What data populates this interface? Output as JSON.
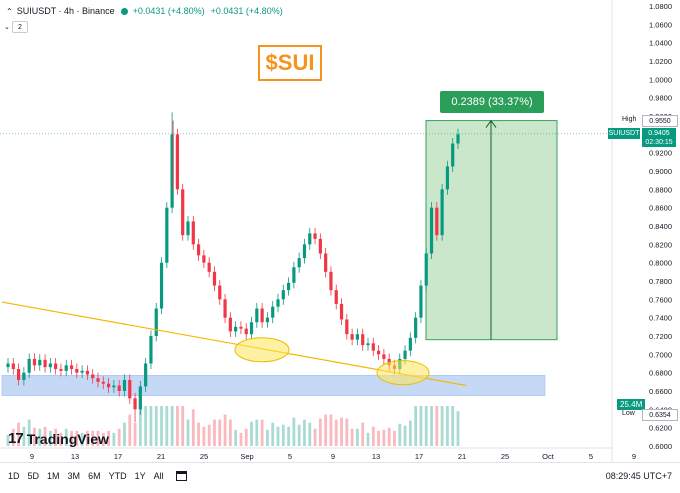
{
  "header": {
    "symbol": "SUIUSDT · 4h · Binance",
    "change_1": "+0.0431 (+4.80%)",
    "change_2": "+0.0431 (+4.80%)",
    "indicator_count": "2"
  },
  "overlay": {
    "title": "$SUI",
    "measure_label": "0.2389 (33.37%)"
  },
  "brand": {
    "logo_text": "17",
    "name": "TradingView"
  },
  "price_axis": {
    "ticks": [
      "1.0800",
      "1.0600",
      "1.0400",
      "1.0200",
      "1.0000",
      "0.9800",
      "0.9600",
      "0.9400",
      "0.9200",
      "0.9000",
      "0.8800",
      "0.8600",
      "0.8400",
      "0.8200",
      "0.8000",
      "0.7800",
      "0.7600",
      "0.7400",
      "0.7200",
      "0.7000",
      "0.6800",
      "0.6600",
      "0.6400",
      "0.6200",
      "0.6000"
    ],
    "high_label": "High",
    "high_value": "0.9550",
    "low_label": "Low",
    "low_value": "0.6354",
    "symbol_tag": "SUIUSDT",
    "last_price": "0.9405",
    "countdown": "02:30:15",
    "volume_tag": "25.4M"
  },
  "time_axis": {
    "labels": [
      "9",
      "13",
      "17",
      "21",
      "25",
      "Sep",
      "5",
      "9",
      "13",
      "17",
      "21",
      "25",
      "Oct",
      "5",
      "9"
    ]
  },
  "timeframes": [
    "1D",
    "5D",
    "1M",
    "3M",
    "6M",
    "YTD",
    "1Y",
    "All"
  ],
  "clock": "08:29:45 UTC+7",
  "colors": {
    "up": "#089981",
    "down": "#f23645",
    "trendline": "#f5b800",
    "support": "#c5d9f7",
    "target_box": "#c8e6c9"
  },
  "chart_data": {
    "type": "candlestick",
    "ylim": [
      0.6,
      1.08
    ],
    "closes": [
      0.69,
      0.684,
      0.672,
      0.68,
      0.695,
      0.688,
      0.694,
      0.686,
      0.69,
      0.684,
      0.682,
      0.688,
      0.684,
      0.68,
      0.682,
      0.678,
      0.674,
      0.67,
      0.668,
      0.664,
      0.666,
      0.66,
      0.672,
      0.652,
      0.64,
      0.665,
      0.69,
      0.72,
      0.75,
      0.8,
      0.86,
      0.94,
      0.88,
      0.83,
      0.845,
      0.82,
      0.808,
      0.8,
      0.79,
      0.775,
      0.76,
      0.74,
      0.725,
      0.73,
      0.728,
      0.722,
      0.735,
      0.75,
      0.735,
      0.74,
      0.752,
      0.76,
      0.77,
      0.778,
      0.795,
      0.805,
      0.82,
      0.832,
      0.826,
      0.81,
      0.79,
      0.77,
      0.755,
      0.738,
      0.722,
      0.716,
      0.722,
      0.71,
      0.712,
      0.704,
      0.7,
      0.695,
      0.688,
      0.684,
      0.695,
      0.704,
      0.718,
      0.74,
      0.775,
      0.81,
      0.86,
      0.83,
      0.88,
      0.905,
      0.93,
      0.94
    ],
    "high": 0.955,
    "low": 0.6354,
    "trendline": {
      "start": 0.757,
      "end": 0.666
    },
    "support_zone": [
      0.655,
      0.677
    ],
    "measure": {
      "from": 0.716,
      "to": 0.955,
      "change": "0.2389 (33.37%)"
    }
  }
}
